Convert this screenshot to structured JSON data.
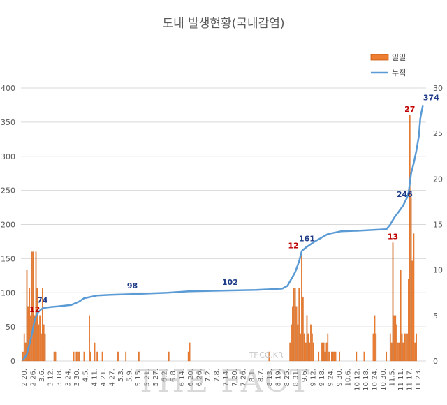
{
  "chart_data": {
    "type": "bar+line",
    "title": "도내 발생현황(국내감염)",
    "legend": [
      "일일",
      "누적"
    ],
    "legend_position": "top-right",
    "y_left": {
      "min": 0,
      "max": 400,
      "ticks": [
        "0",
        "50",
        "100",
        "150",
        "200",
        "250",
        "300",
        "350",
        "400"
      ]
    },
    "y_right": {
      "min": 0,
      "max": 30,
      "ticks": [
        "0",
        "5",
        "10",
        "15",
        "20",
        "25",
        "30"
      ]
    },
    "colors": {
      "bar": "#ED7D31",
      "bar_edge": "#C55A11",
      "line": "#5B9BD5",
      "grid": "#D9D9D9",
      "label_red": "#C00000",
      "label_blue": "#1F3C88"
    },
    "days": 279,
    "x_tick_labels": [
      "2.20.",
      "2.26.",
      "3.6.",
      "3.12.",
      "3.18.",
      "3.24.",
      "3.30.",
      "4.5.",
      "4.11.",
      "4.21.",
      "4.27.",
      "5.3.",
      "5.9.",
      "5.15.",
      "5.21.",
      "5.27.",
      "6.2.",
      "6.8.",
      "6.14.",
      "6.20.",
      "6.26.",
      "7.2.",
      "7.8.",
      "7.14.",
      "7.20.",
      "7.26.",
      "8.1.",
      "8.7.",
      "8.13.",
      "8.19.",
      "8.25.",
      "8.31.",
      "9.6.",
      "9.12.",
      "9.18.",
      "9.24.",
      "9.30.",
      "10.6.",
      "10.12.",
      "10.18.",
      "10.24.",
      "10.30.",
      "11.5.",
      "11.11.",
      "11.17.",
      "11.23."
    ],
    "daily": [
      [
        1,
        1
      ],
      [
        2,
        3
      ],
      [
        3,
        2
      ],
      [
        4,
        10
      ],
      [
        5,
        6
      ],
      [
        6,
        8
      ],
      [
        7,
        5
      ],
      [
        8,
        12
      ],
      [
        9,
        12
      ],
      [
        10,
        5
      ],
      [
        11,
        12
      ],
      [
        12,
        8
      ],
      [
        13,
        4
      ],
      [
        14,
        5
      ],
      [
        15,
        3
      ],
      [
        16,
        8
      ],
      [
        17,
        4
      ],
      [
        18,
        3
      ],
      [
        25,
        1
      ],
      [
        26,
        1
      ],
      [
        40,
        1
      ],
      [
        42,
        1
      ],
      [
        43,
        1
      ],
      [
        44,
        1
      ],
      [
        48,
        1
      ],
      [
        52,
        5
      ],
      [
        53,
        1
      ],
      [
        56,
        2
      ],
      [
        58,
        1
      ],
      [
        62,
        1
      ],
      [
        74,
        1
      ],
      [
        80,
        1
      ],
      [
        90,
        1
      ],
      [
        113,
        1
      ],
      [
        128,
        1
      ],
      [
        129,
        2
      ],
      [
        190,
        1
      ],
      [
        206,
        2
      ],
      [
        207,
        4
      ],
      [
        208,
        6
      ],
      [
        209,
        8
      ],
      [
        210,
        8
      ],
      [
        211,
        6
      ],
      [
        212,
        4
      ],
      [
        213,
        8
      ],
      [
        214,
        3
      ],
      [
        215,
        12
      ],
      [
        216,
        7
      ],
      [
        217,
        3
      ],
      [
        218,
        2
      ],
      [
        219,
        5
      ],
      [
        220,
        3
      ],
      [
        221,
        2
      ],
      [
        222,
        4
      ],
      [
        223,
        3
      ],
      [
        224,
        2
      ],
      [
        228,
        1
      ],
      [
        230,
        2
      ],
      [
        231,
        2
      ],
      [
        232,
        2
      ],
      [
        233,
        1
      ],
      [
        234,
        2
      ],
      [
        235,
        3
      ],
      [
        236,
        1
      ],
      [
        238,
        1
      ],
      [
        239,
        1
      ],
      [
        240,
        1
      ],
      [
        241,
        1
      ],
      [
        244,
        1
      ],
      [
        257,
        1
      ],
      [
        263,
        1
      ],
      [
        270,
        3
      ],
      [
        271,
        5
      ],
      [
        272,
        3
      ],
      [
        280,
        1
      ],
      [
        283,
        3
      ],
      [
        284,
        2
      ],
      [
        285,
        13
      ],
      [
        286,
        5
      ],
      [
        287,
        5
      ],
      [
        288,
        4
      ],
      [
        289,
        2
      ],
      [
        290,
        2
      ],
      [
        291,
        10
      ],
      [
        292,
        3
      ],
      [
        293,
        2
      ],
      [
        294,
        3
      ],
      [
        295,
        3
      ],
      [
        296,
        3
      ],
      [
        297,
        9
      ],
      [
        298,
        27
      ],
      [
        299,
        18
      ],
      [
        300,
        11
      ],
      [
        301,
        14
      ],
      [
        302,
        2
      ],
      [
        303,
        3
      ]
    ],
    "cumulative": [
      [
        1,
        1
      ],
      [
        4,
        10
      ],
      [
        8,
        40
      ],
      [
        10,
        60
      ],
      [
        12,
        70
      ],
      [
        14,
        74
      ],
      [
        16,
        77
      ],
      [
        18,
        78
      ],
      [
        22,
        79
      ],
      [
        28,
        80
      ],
      [
        38,
        82
      ],
      [
        44,
        87
      ],
      [
        48,
        92
      ],
      [
        58,
        96
      ],
      [
        68,
        97
      ],
      [
        85,
        98
      ],
      [
        112,
        100
      ],
      [
        128,
        102
      ],
      [
        180,
        104
      ],
      [
        200,
        106
      ],
      [
        204,
        110
      ],
      [
        210,
        130
      ],
      [
        213,
        146
      ],
      [
        215,
        161
      ],
      [
        218,
        166
      ],
      [
        225,
        175
      ],
      [
        235,
        186
      ],
      [
        245,
        190
      ],
      [
        260,
        191
      ],
      [
        280,
        193
      ],
      [
        283,
        200
      ],
      [
        286,
        210
      ],
      [
        290,
        220
      ],
      [
        293,
        228
      ],
      [
        296,
        240
      ],
      [
        297,
        246
      ],
      [
        299,
        275
      ],
      [
        301,
        290
      ],
      [
        303,
        308
      ],
      [
        305,
        330
      ],
      [
        306,
        355
      ],
      [
        307,
        365
      ],
      [
        308,
        374
      ]
    ],
    "data_labels": [
      {
        "text": "12",
        "series": "daily",
        "x": 10,
        "color": "red"
      },
      {
        "text": "74",
        "series": "cumulative",
        "x": 16,
        "color": "blue"
      },
      {
        "text": "98",
        "series": "cumulative",
        "x": 85,
        "color": "blue"
      },
      {
        "text": "102",
        "series": "cumulative",
        "x": 160,
        "color": "blue"
      },
      {
        "text": "12",
        "series": "daily",
        "x": 215,
        "color": "red"
      },
      {
        "text": "161",
        "series": "cumulative",
        "x": 219,
        "color": "blue"
      },
      {
        "text": "13",
        "series": "daily",
        "x": 285,
        "color": "red"
      },
      {
        "text": "246",
        "series": "cumulative",
        "x": 294,
        "color": "blue"
      },
      {
        "text": "27",
        "series": "daily",
        "x": 298,
        "color": "red"
      },
      {
        "text": "374",
        "series": "cumulative",
        "x": 308,
        "color": "blue"
      }
    ]
  },
  "watermark": {
    "small": "TF.CO.KR",
    "big": "THE FACT"
  }
}
